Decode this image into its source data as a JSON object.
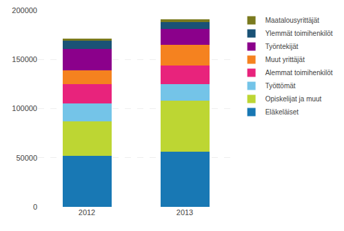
{
  "chart_data": {
    "type": "bar",
    "stacked": true,
    "categories": [
      "2012",
      "2013"
    ],
    "series": [
      {
        "name": "Eläkeläiset",
        "color": "#1878b4",
        "values": [
          52000,
          56000
        ]
      },
      {
        "name": "Opiskelijat ja muut",
        "color": "#bdd633",
        "values": [
          35000,
          52000
        ]
      },
      {
        "name": "Työttömät",
        "color": "#74c4e8",
        "values": [
          18000,
          17000
        ]
      },
      {
        "name": "Alemmat toimihenkilöt",
        "color": "#e8237c",
        "values": [
          20000,
          19000
        ]
      },
      {
        "name": "Muut yrittäjät",
        "color": "#f5821f",
        "values": [
          14000,
          21000
        ]
      },
      {
        "name": "Työntekijät",
        "color": "#8b008b",
        "values": [
          22000,
          16000
        ]
      },
      {
        "name": "Ylemmät toimihenkilöt",
        "color": "#1a5276",
        "values": [
          8000,
          7000
        ]
      },
      {
        "name": "Maatalousyrittäjät",
        "color": "#7a7a1e",
        "values": [
          2000,
          3000
        ]
      }
    ],
    "ylim": [
      0,
      200000
    ],
    "yticks": [
      0,
      50000,
      100000,
      150000,
      200000
    ],
    "grid": true,
    "legend": "upper right"
  }
}
